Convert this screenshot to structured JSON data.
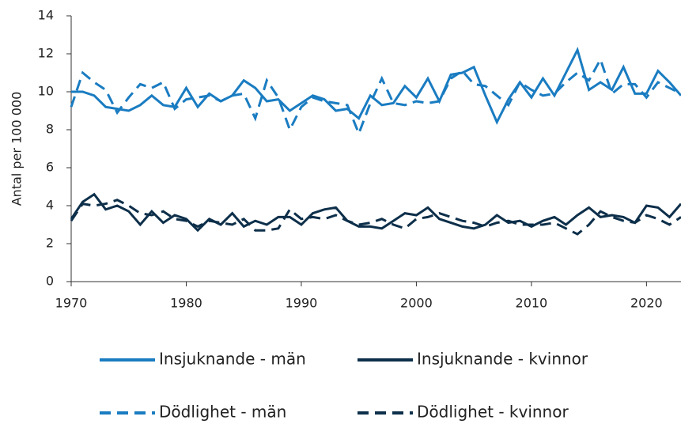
{
  "chart_data": {
    "type": "line",
    "y_label": "Antal per 100 000",
    "x": [
      1970,
      1971,
      1972,
      1973,
      1974,
      1975,
      1976,
      1977,
      1978,
      1979,
      1980,
      1981,
      1982,
      1983,
      1984,
      1985,
      1986,
      1987,
      1988,
      1989,
      1990,
      1991,
      1992,
      1993,
      1994,
      1995,
      1996,
      1997,
      1998,
      1999,
      2000,
      2001,
      2002,
      2003,
      2004,
      2005,
      2006,
      2007,
      2008,
      2009,
      2010,
      2011,
      2012,
      2013,
      2014,
      2015,
      2016,
      2017,
      2018,
      2019,
      2020,
      2021,
      2022,
      2023
    ],
    "series": [
      {
        "name": "Insjuknande - män",
        "color": "#1a7cc1",
        "line_style": "solid",
        "values": [
          10.0,
          10.0,
          9.8,
          9.2,
          9.1,
          9.0,
          9.3,
          9.8,
          9.3,
          9.2,
          10.2,
          9.2,
          9.9,
          9.5,
          9.8,
          10.6,
          10.2,
          9.5,
          9.6,
          9.0,
          9.4,
          9.8,
          9.6,
          9.0,
          9.1,
          8.6,
          9.8,
          9.3,
          9.4,
          10.3,
          9.7,
          10.7,
          9.5,
          10.9,
          11.0,
          11.3,
          9.8,
          8.4,
          9.6,
          10.5,
          9.7,
          10.7,
          9.8,
          11.0,
          12.2,
          10.1,
          10.5,
          10.1,
          11.3,
          9.9,
          9.9,
          11.1,
          10.5,
          9.8
        ]
      },
      {
        "name": "Insjuknande - kvinnor",
        "color": "#0d2f4a",
        "line_style": "solid",
        "values": [
          3.3,
          4.2,
          4.6,
          3.8,
          4.0,
          3.7,
          3.0,
          3.7,
          3.1,
          3.5,
          3.3,
          2.7,
          3.3,
          3.0,
          3.6,
          2.9,
          3.2,
          3.0,
          3.4,
          3.4,
          3.0,
          3.6,
          3.8,
          3.9,
          3.2,
          2.9,
          2.9,
          2.8,
          3.2,
          3.6,
          3.5,
          3.9,
          3.3,
          3.1,
          2.9,
          2.8,
          3.0,
          3.5,
          3.1,
          3.2,
          2.9,
          3.2,
          3.4,
          3.0,
          3.5,
          3.9,
          3.4,
          3.5,
          3.4,
          3.1,
          4.0,
          3.9,
          3.4,
          4.1
        ]
      },
      {
        "name": "Dödlighet - män",
        "color": "#1a7cc1",
        "line_style": "dashed",
        "values": [
          9.2,
          11.0,
          10.5,
          10.1,
          8.9,
          9.7,
          10.4,
          10.2,
          10.5,
          9.1,
          9.6,
          9.7,
          9.8,
          9.5,
          9.8,
          9.9,
          8.6,
          10.6,
          9.7,
          8.0,
          9.2,
          9.7,
          9.5,
          9.4,
          9.3,
          7.8,
          9.4,
          10.7,
          9.4,
          9.3,
          9.5,
          9.4,
          9.5,
          10.7,
          11.1,
          10.4,
          10.3,
          9.8,
          9.3,
          10.5,
          10.1,
          9.8,
          9.9,
          10.5,
          11.0,
          10.6,
          11.7,
          9.9,
          10.4,
          10.4,
          9.7,
          10.5,
          10.2,
          9.9
        ]
      },
      {
        "name": "Dödlighet - kvinnor",
        "color": "#0d2f4a",
        "line_style": "dashed",
        "values": [
          3.2,
          4.1,
          4.0,
          4.1,
          4.3,
          4.0,
          3.6,
          3.5,
          3.7,
          3.3,
          3.2,
          2.9,
          3.2,
          3.1,
          3.0,
          3.3,
          2.7,
          2.7,
          2.8,
          3.8,
          3.3,
          3.4,
          3.3,
          3.5,
          3.2,
          3.0,
          3.1,
          3.3,
          3.0,
          2.8,
          3.3,
          3.4,
          3.6,
          3.4,
          3.2,
          3.1,
          2.9,
          3.1,
          3.2,
          3.0,
          3.0,
          3.0,
          3.1,
          2.8,
          2.5,
          3.0,
          3.7,
          3.4,
          3.2,
          3.1,
          3.5,
          3.3,
          3.0,
          3.4
        ]
      }
    ],
    "xlim": [
      1970,
      2023
    ],
    "xticks": [
      1970,
      1980,
      1990,
      2000,
      2010,
      2020
    ],
    "ylim": [
      0,
      14
    ],
    "yticks": [
      0,
      2,
      4,
      6,
      8,
      10,
      12,
      14
    ],
    "grid": false,
    "legend": "bottom"
  }
}
